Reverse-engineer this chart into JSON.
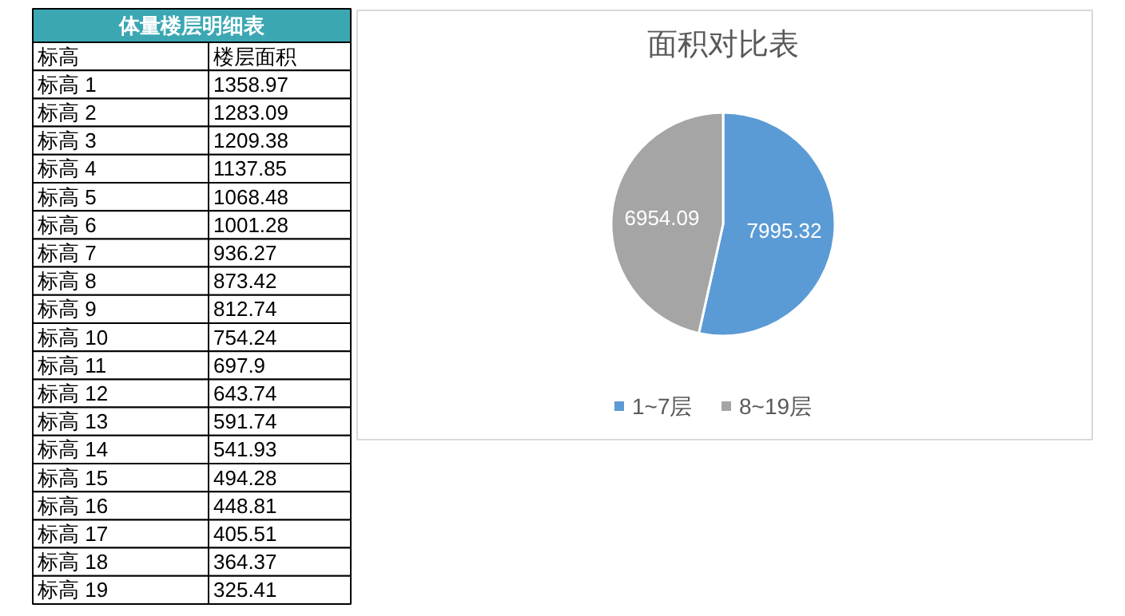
{
  "chart_data": [
    {
      "type": "other",
      "title": "体量楼层明细表",
      "xlabel": "标高",
      "ylabel": "楼层面积",
      "categories": [
        "标高 1",
        "标高 2",
        "标高 3",
        "标高 4",
        "标高 5",
        "标高 6",
        "标高 7",
        "标高 8",
        "标高 9",
        "标高 10",
        "标高 11",
        "标高 12",
        "标高 13",
        "标高 14",
        "标高 15",
        "标高 16",
        "标高 17",
        "标高 18",
        "标高 19"
      ],
      "values": [
        1358.97,
        1283.09,
        1209.38,
        1137.85,
        1068.48,
        1001.28,
        936.27,
        873.42,
        812.74,
        754.24,
        697.9,
        643.74,
        591.74,
        541.93,
        494.28,
        448.81,
        405.51,
        364.37,
        325.41
      ],
      "data_labels": true
    },
    {
      "type": "pie",
      "title": "面积对比表",
      "categories": [
        "1~7层",
        "8~19层"
      ],
      "values": [
        7995.32,
        6954.09
      ],
      "colors": [
        "#5b9bd5",
        "#a5a5a5"
      ],
      "data_labels": true,
      "legend": "bottom"
    }
  ]
}
